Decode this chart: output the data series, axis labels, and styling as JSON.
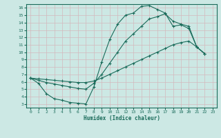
{
  "xlabel": "Humidex (Indice chaleur)",
  "bg_color": "#cce8e4",
  "grid_color": "#d4b8bc",
  "line_color": "#1a6b5a",
  "xlim": [
    -0.5,
    23.5
  ],
  "ylim": [
    2.5,
    16.5
  ],
  "xticks": [
    0,
    1,
    2,
    3,
    4,
    5,
    6,
    7,
    8,
    9,
    10,
    11,
    12,
    13,
    14,
    15,
    16,
    17,
    18,
    19,
    20,
    21,
    22,
    23
  ],
  "yticks": [
    3,
    4,
    5,
    6,
    7,
    8,
    9,
    10,
    11,
    12,
    13,
    14,
    15,
    16
  ],
  "line1_x": [
    0,
    1,
    2,
    3,
    4,
    5,
    6,
    7,
    8,
    9,
    10,
    11,
    12,
    13,
    14,
    15,
    16,
    17,
    18,
    19,
    20,
    21,
    22
  ],
  "line1_y": [
    6.5,
    5.8,
    4.4,
    3.7,
    3.5,
    3.2,
    3.1,
    3.0,
    5.3,
    8.7,
    11.7,
    13.8,
    15.0,
    15.3,
    16.2,
    16.3,
    15.8,
    15.3,
    13.5,
    13.7,
    13.2,
    10.7,
    9.8
  ],
  "line2_x": [
    0,
    1,
    2,
    3,
    4,
    5,
    6,
    7,
    8,
    9,
    10,
    11,
    12,
    13,
    14,
    15,
    16,
    17,
    18,
    19,
    20,
    21,
    22
  ],
  "line2_y": [
    6.5,
    6.4,
    6.3,
    6.2,
    6.1,
    6.0,
    5.9,
    5.9,
    6.1,
    6.5,
    7.0,
    7.5,
    8.0,
    8.5,
    9.0,
    9.5,
    10.0,
    10.5,
    11.0,
    11.3,
    11.5,
    10.7,
    9.8
  ],
  "line3_x": [
    0,
    1,
    2,
    3,
    4,
    5,
    6,
    7,
    8,
    9,
    10,
    11,
    12,
    13,
    14,
    15,
    16,
    17,
    18,
    19,
    20,
    21,
    22
  ],
  "line3_y": [
    6.5,
    6.2,
    5.9,
    5.7,
    5.5,
    5.3,
    5.1,
    5.0,
    5.8,
    7.0,
    8.5,
    10.0,
    11.5,
    12.5,
    13.5,
    14.5,
    14.8,
    15.2,
    14.2,
    13.8,
    13.5,
    10.7,
    9.8
  ]
}
